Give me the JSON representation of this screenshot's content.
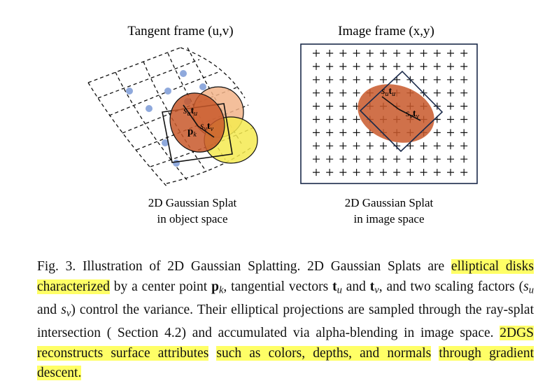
{
  "left_panel": {
    "title": "Tangent frame (u,v)",
    "caption": [
      "2D Gaussian Splat",
      "in object space"
    ],
    "labels": [
      {
        "parts": [
          {
            "text": "s",
            "style": "italic"
          },
          {
            "text": "u",
            "style": "sub"
          },
          {
            "text": "t",
            "style": "bold"
          },
          {
            "text": "u",
            "style": "sub"
          }
        ]
      },
      {
        "parts": [
          {
            "text": "s",
            "style": "italic"
          },
          {
            "text": "v",
            "style": "sub"
          },
          {
            "text": "t",
            "style": "bold"
          },
          {
            "text": "v",
            "style": "sub"
          }
        ]
      },
      {
        "parts": [
          {
            "text": "p",
            "style": "bold"
          },
          {
            "text": "k",
            "style": "sub"
          }
        ]
      }
    ]
  },
  "right_panel": {
    "title": "Image frame (x,y)",
    "caption": [
      "2D Gaussian Splat",
      "in image space"
    ],
    "labels": [
      {
        "parts": [
          {
            "text": "s",
            "style": "italic"
          },
          {
            "text": "u",
            "style": "sub"
          },
          {
            "text": "t",
            "style": "bold"
          },
          {
            "text": "u",
            "style": "sub"
          }
        ]
      },
      {
        "parts": [
          {
            "text": "s",
            "style": "italic"
          },
          {
            "text": "v",
            "style": "sub"
          },
          {
            "text": "t",
            "style": "bold"
          },
          {
            "text": "v",
            "style": "sub"
          }
        ]
      }
    ]
  },
  "figure_caption": {
    "segments": [
      {
        "text": "Fig. 3.  Illustration of 2D Gaussian Splatting. 2D Gaussian Splats are ",
        "style": "normal"
      },
      {
        "text": "elliptical disks characterized",
        "style": "highlight"
      },
      {
        "text": " by a center point ",
        "style": "normal"
      },
      {
        "text": "p",
        "style": "bold"
      },
      {
        "text": "k",
        "style": "sub"
      },
      {
        "text": ", tangential vectors ",
        "style": "normal"
      },
      {
        "text": "t",
        "style": "bold"
      },
      {
        "text": "u",
        "style": "sub"
      },
      {
        "text": " and ",
        "style": "normal"
      },
      {
        "text": "t",
        "style": "bold"
      },
      {
        "text": "v",
        "style": "sub"
      },
      {
        "text": ", and two scaling factors (",
        "style": "normal"
      },
      {
        "text": "s",
        "style": "italic"
      },
      {
        "text": "u",
        "style": "sub"
      },
      {
        "text": " and ",
        "style": "normal"
      },
      {
        "text": "s",
        "style": "italic"
      },
      {
        "text": "v",
        "style": "sub"
      },
      {
        "text": ") control the variance. Their elliptical projections are sampled through the ray-splat intersection ( Section 4.2) and accumulated via alpha-blending in image space. ",
        "style": "normal"
      },
      {
        "text": "2DGS reconstructs surface attributes",
        "style": "highlight"
      },
      {
        "text": " ",
        "style": "normal"
      },
      {
        "text": "such as colors, depths, and normals",
        "style": "highlight"
      },
      {
        "text": " ",
        "style": "normal"
      },
      {
        "text": "through gradient descent.",
        "style": "highlight"
      }
    ]
  }
}
